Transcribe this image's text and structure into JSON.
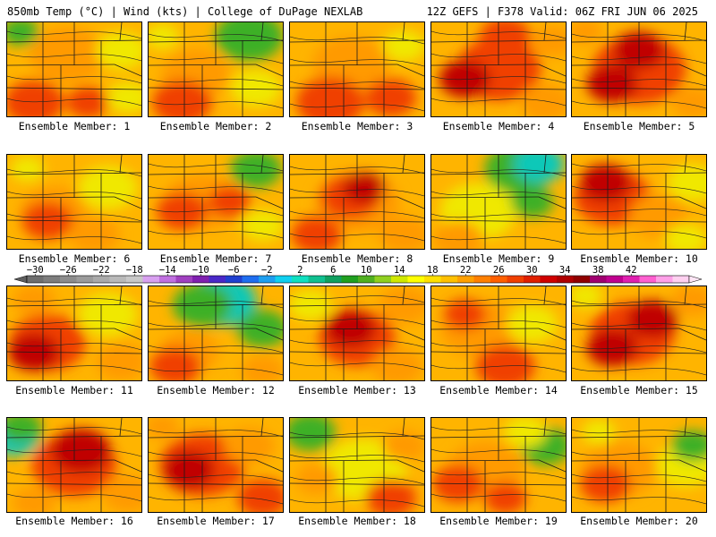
{
  "header": {
    "left": "850mb Temp (°C) | Wind (kts) | College of DuPage NEXLAB",
    "right": "12Z GEFS | F378 Valid: 06Z FRI JUN 06 2025"
  },
  "panels": [
    {
      "label": "Ensemble Member: 1",
      "blobs": [
        [
          0.45,
          0.35,
          0.45,
          "o"
        ],
        [
          0.2,
          0.85,
          0.35,
          "r"
        ],
        [
          0.6,
          0.85,
          0.25,
          "r"
        ],
        [
          0.1,
          0.1,
          0.22,
          "g"
        ],
        [
          0.85,
          0.3,
          0.3,
          "y"
        ],
        [
          0.9,
          0.8,
          0.25,
          "y"
        ]
      ]
    },
    {
      "label": "Ensemble Member: 2",
      "blobs": [
        [
          0.35,
          0.55,
          0.4,
          "o"
        ],
        [
          0.25,
          0.85,
          0.35,
          "r"
        ],
        [
          0.75,
          0.15,
          0.4,
          "g"
        ],
        [
          0.8,
          0.7,
          0.3,
          "y"
        ],
        [
          0.1,
          0.15,
          0.2,
          "y"
        ]
      ]
    },
    {
      "label": "Ensemble Member: 3",
      "blobs": [
        [
          0.45,
          0.45,
          0.45,
          "o"
        ],
        [
          0.3,
          0.85,
          0.4,
          "r"
        ],
        [
          0.75,
          0.8,
          0.3,
          "r"
        ],
        [
          0.85,
          0.25,
          0.25,
          "y"
        ]
      ]
    },
    {
      "label": "Ensemble Member: 4",
      "blobs": [
        [
          0.5,
          0.5,
          0.5,
          "r"
        ],
        [
          0.25,
          0.6,
          0.3,
          "d"
        ],
        [
          0.55,
          0.15,
          0.3,
          "r"
        ],
        [
          0.9,
          0.2,
          0.25,
          "o"
        ],
        [
          0.85,
          0.85,
          0.3,
          "o"
        ]
      ]
    },
    {
      "label": "Ensemble Member: 5",
      "blobs": [
        [
          0.5,
          0.5,
          0.55,
          "r"
        ],
        [
          0.5,
          0.3,
          0.3,
          "d"
        ],
        [
          0.3,
          0.65,
          0.3,
          "d"
        ],
        [
          0.9,
          0.85,
          0.25,
          "o"
        ],
        [
          0.1,
          0.1,
          0.2,
          "o"
        ]
      ]
    },
    {
      "label": "Ensemble Member: 6",
      "blobs": [
        [
          0.35,
          0.6,
          0.4,
          "o"
        ],
        [
          0.3,
          0.7,
          0.3,
          "r"
        ],
        [
          0.75,
          0.35,
          0.35,
          "y"
        ],
        [
          0.65,
          0.85,
          0.3,
          "o"
        ],
        [
          0.15,
          0.15,
          0.2,
          "y"
        ]
      ]
    },
    {
      "label": "Ensemble Member: 7",
      "blobs": [
        [
          0.4,
          0.5,
          0.45,
          "o"
        ],
        [
          0.25,
          0.6,
          0.3,
          "r"
        ],
        [
          0.6,
          0.5,
          0.25,
          "r"
        ],
        [
          0.8,
          0.15,
          0.3,
          "g"
        ],
        [
          0.85,
          0.75,
          0.25,
          "y"
        ]
      ]
    },
    {
      "label": "Ensemble Member: 8",
      "blobs": [
        [
          0.5,
          0.5,
          0.5,
          "o"
        ],
        [
          0.45,
          0.45,
          0.35,
          "r"
        ],
        [
          0.55,
          0.35,
          0.25,
          "d"
        ],
        [
          0.2,
          0.85,
          0.3,
          "r"
        ],
        [
          0.85,
          0.85,
          0.3,
          "o"
        ]
      ]
    },
    {
      "label": "Ensemble Member: 9",
      "blobs": [
        [
          0.35,
          0.6,
          0.45,
          "y"
        ],
        [
          0.65,
          0.15,
          0.4,
          "g"
        ],
        [
          0.8,
          0.1,
          0.3,
          "t"
        ],
        [
          0.75,
          0.5,
          0.25,
          "g"
        ],
        [
          0.2,
          0.9,
          0.3,
          "o"
        ]
      ]
    },
    {
      "label": "Ensemble Member: 10",
      "blobs": [
        [
          0.3,
          0.45,
          0.45,
          "r"
        ],
        [
          0.25,
          0.3,
          0.3,
          "d"
        ],
        [
          0.65,
          0.65,
          0.35,
          "o"
        ],
        [
          0.9,
          0.3,
          0.3,
          "y"
        ],
        [
          0.85,
          0.9,
          0.25,
          "y"
        ]
      ]
    },
    {
      "label": "Ensemble Member: 11",
      "blobs": [
        [
          0.3,
          0.6,
          0.45,
          "r"
        ],
        [
          0.2,
          0.7,
          0.3,
          "d"
        ],
        [
          0.75,
          0.3,
          0.35,
          "y"
        ],
        [
          0.85,
          0.8,
          0.3,
          "o"
        ],
        [
          0.2,
          0.15,
          0.25,
          "o"
        ]
      ]
    },
    {
      "label": "Ensemble Member: 12",
      "blobs": [
        [
          0.55,
          0.15,
          0.4,
          "t"
        ],
        [
          0.4,
          0.2,
          0.35,
          "g"
        ],
        [
          0.85,
          0.45,
          0.3,
          "g"
        ],
        [
          0.3,
          0.7,
          0.35,
          "o"
        ],
        [
          0.2,
          0.85,
          0.3,
          "r"
        ],
        [
          0.85,
          0.9,
          0.25,
          "o"
        ]
      ]
    },
    {
      "label": "Ensemble Member: 13",
      "blobs": [
        [
          0.5,
          0.55,
          0.45,
          "r"
        ],
        [
          0.45,
          0.45,
          0.3,
          "d"
        ],
        [
          0.15,
          0.2,
          0.25,
          "y"
        ],
        [
          0.85,
          0.2,
          0.3,
          "o"
        ],
        [
          0.8,
          0.85,
          0.3,
          "o"
        ]
      ]
    },
    {
      "label": "Ensemble Member: 14",
      "blobs": [
        [
          0.35,
          0.45,
          0.45,
          "o"
        ],
        [
          0.25,
          0.3,
          0.25,
          "r"
        ],
        [
          0.75,
          0.4,
          0.3,
          "y"
        ],
        [
          0.55,
          0.85,
          0.35,
          "r"
        ]
      ]
    },
    {
      "label": "Ensemble Member: 15",
      "blobs": [
        [
          0.45,
          0.5,
          0.5,
          "r"
        ],
        [
          0.3,
          0.65,
          0.3,
          "d"
        ],
        [
          0.6,
          0.35,
          0.3,
          "d"
        ],
        [
          0.9,
          0.15,
          0.25,
          "o"
        ],
        [
          0.1,
          0.1,
          0.2,
          "y"
        ]
      ]
    },
    {
      "label": "Ensemble Member: 16",
      "blobs": [
        [
          0.5,
          0.5,
          0.5,
          "r"
        ],
        [
          0.55,
          0.35,
          0.35,
          "d"
        ],
        [
          0.05,
          0.2,
          0.3,
          "t"
        ],
        [
          0.1,
          0.1,
          0.25,
          "g"
        ],
        [
          0.9,
          0.8,
          0.3,
          "o"
        ],
        [
          0.2,
          0.9,
          0.25,
          "o"
        ]
      ]
    },
    {
      "label": "Ensemble Member: 17",
      "blobs": [
        [
          0.4,
          0.5,
          0.5,
          "r"
        ],
        [
          0.3,
          0.55,
          0.3,
          "d"
        ],
        [
          0.75,
          0.3,
          0.3,
          "o"
        ],
        [
          0.85,
          0.85,
          0.3,
          "r"
        ],
        [
          0.1,
          0.1,
          0.2,
          "o"
        ]
      ]
    },
    {
      "label": "Ensemble Member: 18",
      "blobs": [
        [
          0.55,
          0.55,
          0.5,
          "y"
        ],
        [
          0.15,
          0.15,
          0.3,
          "g"
        ],
        [
          0.2,
          0.65,
          0.25,
          "o"
        ],
        [
          0.75,
          0.85,
          0.3,
          "r"
        ],
        [
          0.85,
          0.3,
          0.25,
          "o"
        ]
      ]
    },
    {
      "label": "Ensemble Member: 19",
      "blobs": [
        [
          0.4,
          0.55,
          0.45,
          "o"
        ],
        [
          0.85,
          0.3,
          0.3,
          "g"
        ],
        [
          0.7,
          0.15,
          0.25,
          "y"
        ],
        [
          0.2,
          0.7,
          0.3,
          "r"
        ],
        [
          0.55,
          0.85,
          0.25,
          "r"
        ]
      ]
    },
    {
      "label": "Ensemble Member: 20",
      "blobs": [
        [
          0.35,
          0.55,
          0.45,
          "o"
        ],
        [
          0.25,
          0.7,
          0.3,
          "r"
        ],
        [
          0.85,
          0.5,
          0.35,
          "y"
        ],
        [
          0.9,
          0.3,
          0.25,
          "g"
        ],
        [
          0.2,
          0.15,
          0.2,
          "y"
        ]
      ]
    }
  ],
  "legend": {
    "labels": [
      "-30",
      "-26",
      "-22",
      "-18",
      "-14",
      "-10",
      "-6",
      "-2",
      "2",
      "6",
      "10",
      "14",
      "18",
      "22",
      "26",
      "30",
      "34",
      "38",
      "42"
    ],
    "colors": [
      "#6e6e6e",
      "#7d7d7d",
      "#8c8c8c",
      "#9b9b9b",
      "#aaaaaa",
      "#b9b9b9",
      "#c8c8c8",
      "#d8a0f0",
      "#c070e0",
      "#a040c0",
      "#8020b0",
      "#4a28c8",
      "#2040d0",
      "#1f6ef0",
      "#1e9ff0",
      "#10d0f0",
      "#10e0c0",
      "#10c090",
      "#10a060",
      "#20a020",
      "#50b020",
      "#90d020",
      "#d0e800",
      "#ffff00",
      "#ffe000",
      "#ffc000",
      "#ffa000",
      "#ff8000",
      "#ff6000",
      "#f04000",
      "#e02000",
      "#d00000",
      "#b00000",
      "#900000",
      "#a00070",
      "#c00090",
      "#e020b0",
      "#ff60d0",
      "#ffa0e8",
      "#ffd0f0"
    ]
  }
}
